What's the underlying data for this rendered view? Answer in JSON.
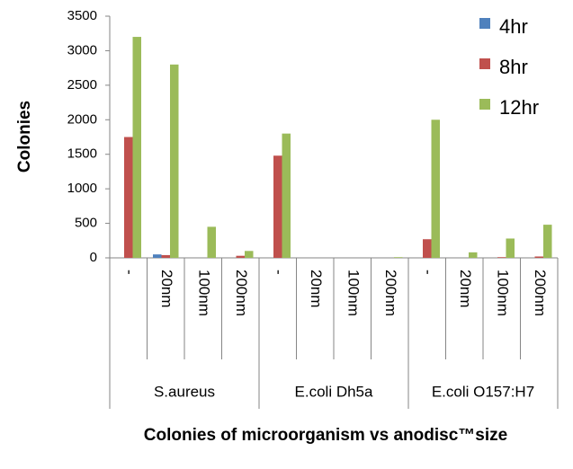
{
  "chart_data": {
    "type": "bar",
    "title": "Colonies of microorganism vs anodisc™size",
    "y_label": "Colonies",
    "groups": [
      {
        "name": "S.aureus",
        "categories": [
          "-",
          "20nm",
          "100nm",
          "200nm"
        ]
      },
      {
        "name": "E.coli Dh5a",
        "categories": [
          "-",
          "20nm",
          "100nm",
          "200nm"
        ]
      },
      {
        "name": "E.coli O157:H7",
        "categories": [
          "-",
          "20nm",
          "100nm",
          "200nm"
        ]
      }
    ],
    "series": [
      {
        "name": "4hr",
        "color": "#4f81bd",
        "values": [
          0,
          50,
          0,
          0,
          0,
          0,
          0,
          0,
          0,
          0,
          0,
          0
        ]
      },
      {
        "name": "8hr",
        "color": "#c0504d",
        "values": [
          1750,
          40,
          0,
          30,
          1480,
          0,
          0,
          0,
          270,
          0,
          10,
          20
        ]
      },
      {
        "name": "12hr",
        "color": "#9bbb59",
        "values": [
          3200,
          2800,
          450,
          100,
          1800,
          0,
          0,
          10,
          2000,
          80,
          280,
          480
        ]
      }
    ],
    "ylim": [
      0,
      3500
    ],
    "yticks": [
      0,
      500,
      1000,
      1500,
      2000,
      2500,
      3000,
      3500
    ],
    "legend": "top-right"
  }
}
